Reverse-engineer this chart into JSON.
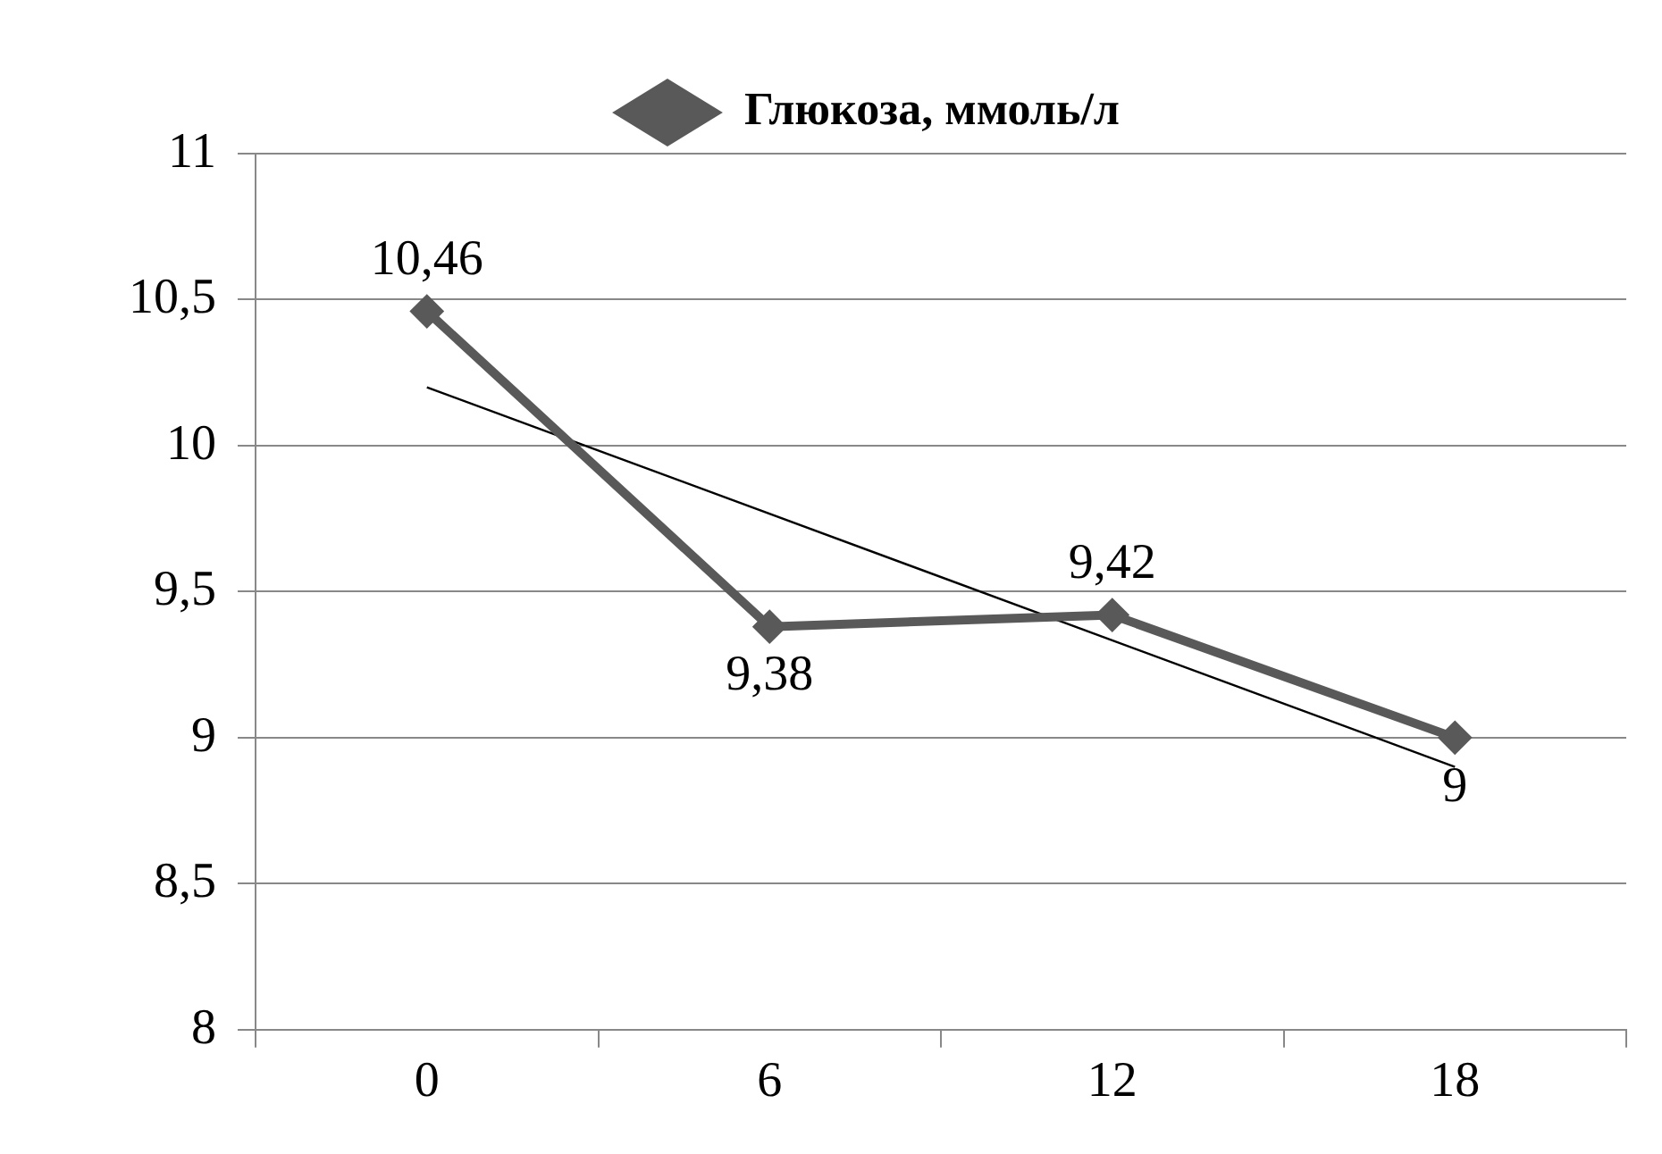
{
  "chart_data": {
    "type": "line",
    "categories": [
      "0",
      "6",
      "12",
      "18"
    ],
    "series": [
      {
        "name": "Глюкоза, ммоль/л",
        "color": "#595959",
        "values": [
          10.46,
          9.38,
          9.42,
          9
        ],
        "marker": "diamond",
        "value_labels": [
          "10,46",
          "9,38",
          "9,42",
          "9"
        ]
      },
      {
        "type": "line",
        "x": [
          "0",
          "18"
        ],
        "values": [
          10.2,
          8.9
        ],
        "color": "#000000"
      }
    ],
    "ylim": [
      8,
      11
    ],
    "yticks": [
      8,
      {
        "value": 8.5,
        "label": "8,5"
      },
      9,
      {
        "value": 9.5,
        "label": "9,5"
      },
      10,
      {
        "value": 10.5,
        "label": "10,5"
      },
      11
    ],
    "grid": "y",
    "legend": "top"
  }
}
